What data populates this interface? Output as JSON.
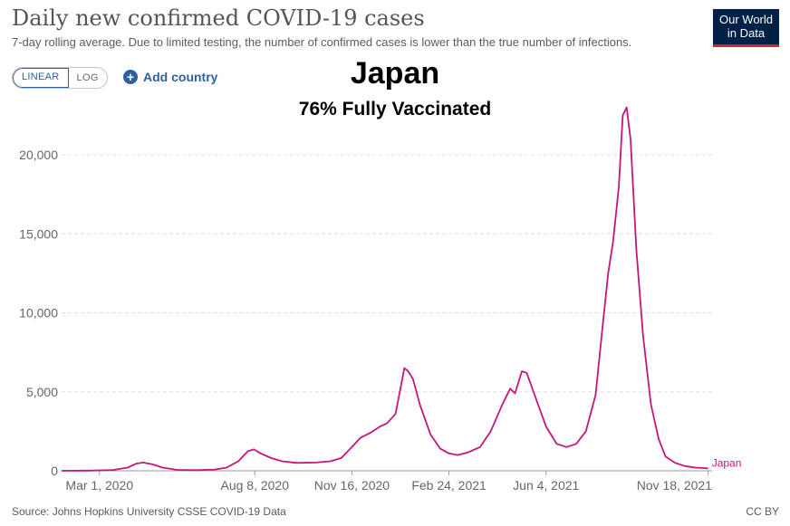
{
  "header": {
    "title": "Daily new confirmed COVID-19 cases",
    "subtitle": "7-day rolling average. Due to limited testing, the number of confirmed cases is lower than the true number of infections."
  },
  "logo": {
    "line1": "Our World",
    "line2": "in Data"
  },
  "controls": {
    "linear_label": "LINEAR",
    "log_label": "LOG",
    "add_country_label": "Add country",
    "add_icon": "plus-circle-icon"
  },
  "overlay": {
    "title": "Japan",
    "subtitle": "76% Fully Vaccinated"
  },
  "footer": {
    "source": "Source: Johns Hopkins University CSSE COVID-19 Data",
    "license": "CC BY"
  },
  "colors": {
    "series": "#c2177a",
    "grid": "#dddddd",
    "axis": "#9a9a9a"
  },
  "chart_data": {
    "type": "line",
    "title": "Daily new confirmed COVID-19 cases",
    "xlabel": "",
    "ylabel": "",
    "ylim": [
      0,
      23500
    ],
    "xlim": [
      "2020-01-22",
      "2021-11-22"
    ],
    "yticks": [
      0,
      5000,
      10000,
      15000,
      20000
    ],
    "ytick_labels": [
      "0",
      "5,000",
      "10,000",
      "15,000",
      "20,000"
    ],
    "xticks": [
      "2020-03-01",
      "2020-08-08",
      "2020-11-16",
      "2021-02-24",
      "2021-06-04",
      "2021-11-18"
    ],
    "xtick_labels": [
      "Mar 1, 2020",
      "Aug 8, 2020",
      "Nov 16, 2020",
      "Feb 24, 2021",
      "Jun 4, 2021",
      "Nov 18, 2021"
    ],
    "grid": true,
    "series": [
      {
        "name": "Japan",
        "points": [
          [
            "2020-01-22",
            0
          ],
          [
            "2020-02-20",
            10
          ],
          [
            "2020-03-15",
            50
          ],
          [
            "2020-03-30",
            200
          ],
          [
            "2020-04-08",
            450
          ],
          [
            "2020-04-15",
            520
          ],
          [
            "2020-04-25",
            400
          ],
          [
            "2020-05-05",
            200
          ],
          [
            "2020-05-20",
            60
          ],
          [
            "2020-06-10",
            40
          ],
          [
            "2020-06-28",
            80
          ],
          [
            "2020-07-10",
            200
          ],
          [
            "2020-07-22",
            600
          ],
          [
            "2020-08-01",
            1250
          ],
          [
            "2020-08-07",
            1350
          ],
          [
            "2020-08-14",
            1100
          ],
          [
            "2020-08-25",
            800
          ],
          [
            "2020-09-05",
            600
          ],
          [
            "2020-09-20",
            500
          ],
          [
            "2020-10-10",
            520
          ],
          [
            "2020-10-25",
            600
          ],
          [
            "2020-11-05",
            800
          ],
          [
            "2020-11-16",
            1500
          ],
          [
            "2020-11-25",
            2100
          ],
          [
            "2020-12-05",
            2400
          ],
          [
            "2020-12-15",
            2800
          ],
          [
            "2020-12-22",
            3000
          ],
          [
            "2020-12-31",
            3600
          ],
          [
            "2021-01-05",
            5200
          ],
          [
            "2021-01-09",
            6500
          ],
          [
            "2021-01-13",
            6300
          ],
          [
            "2021-01-18",
            5800
          ],
          [
            "2021-01-25",
            4200
          ],
          [
            "2021-02-05",
            2300
          ],
          [
            "2021-02-15",
            1400
          ],
          [
            "2021-02-24",
            1100
          ],
          [
            "2021-03-05",
            1000
          ],
          [
            "2021-03-15",
            1150
          ],
          [
            "2021-03-28",
            1500
          ],
          [
            "2021-04-08",
            2500
          ],
          [
            "2021-04-20",
            4200
          ],
          [
            "2021-04-28",
            5200
          ],
          [
            "2021-05-03",
            4900
          ],
          [
            "2021-05-10",
            6300
          ],
          [
            "2021-05-15",
            6200
          ],
          [
            "2021-05-25",
            4500
          ],
          [
            "2021-06-04",
            2800
          ],
          [
            "2021-06-15",
            1700
          ],
          [
            "2021-06-25",
            1500
          ],
          [
            "2021-07-05",
            1700
          ],
          [
            "2021-07-15",
            2500
          ],
          [
            "2021-07-25",
            4800
          ],
          [
            "2021-08-01",
            9000
          ],
          [
            "2021-08-07",
            12500
          ],
          [
            "2021-08-12",
            14500
          ],
          [
            "2021-08-18",
            18000
          ],
          [
            "2021-08-22",
            22500
          ],
          [
            "2021-08-26",
            23000
          ],
          [
            "2021-08-30",
            21000
          ],
          [
            "2021-09-05",
            14000
          ],
          [
            "2021-09-12",
            8500
          ],
          [
            "2021-09-20",
            4200
          ],
          [
            "2021-09-28",
            2000
          ],
          [
            "2021-10-05",
            900
          ],
          [
            "2021-10-15",
            500
          ],
          [
            "2021-10-25",
            300
          ],
          [
            "2021-11-05",
            200
          ],
          [
            "2021-11-18",
            150
          ]
        ]
      }
    ]
  }
}
